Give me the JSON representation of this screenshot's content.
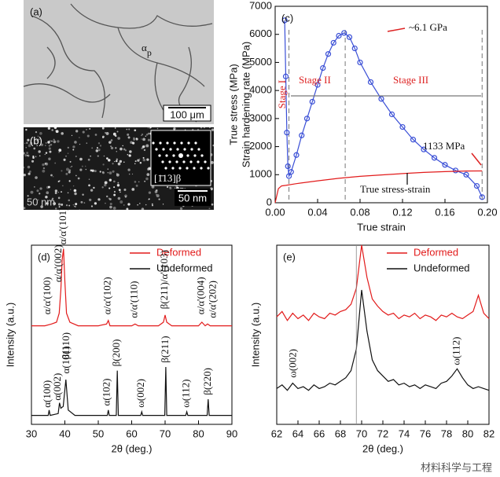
{
  "figure": {
    "panels": {
      "a": {
        "label": "(a)",
        "phase": "α",
        "phase_sub": "p",
        "scale": "100 μm"
      },
      "b": {
        "label": "(b)",
        "zone": "[1̄13]β",
        "scale": "50 nm",
        "inset_scale": "50 nm"
      }
    },
    "watermark": "材料科学与工程"
  },
  "chart_data": [
    {
      "type": "line",
      "label": "(c)",
      "xlabel": "True strain",
      "ylabel_lines": [
        "True stress (MPa)",
        "Strain hardening rate (MPa)"
      ],
      "xlim": [
        0,
        0.2
      ],
      "xticks": [
        {
          "value": 0,
          "label": "0.00"
        },
        0.04,
        0.08,
        0.12,
        0.16,
        {
          "value": 0.2,
          "label": "0.20"
        }
      ],
      "ylim": [
        0,
        7000
      ],
      "yticks": [
        0,
        1000,
        2000,
        3000,
        4000,
        5000,
        6000,
        7000
      ],
      "stage_boundaries": [
        0.013,
        0.066,
        0.195
      ],
      "series": [
        {
          "color": "#3a4fd6",
          "marker": "o",
          "x": [
            0.009,
            0.01,
            0.011,
            0.012,
            0.013,
            0.015,
            0.02,
            0.025,
            0.03,
            0.035,
            0.04,
            0.045,
            0.05,
            0.055,
            0.06,
            0.065,
            0.07,
            0.075,
            0.08,
            0.09,
            0.1,
            0.11,
            0.12,
            0.13,
            0.14,
            0.15,
            0.16,
            0.17,
            0.18,
            0.19,
            0.195
          ],
          "values": [
            6500,
            4500,
            2500,
            1300,
            950,
            1100,
            1700,
            2400,
            3000,
            3600,
            4200,
            4800,
            5300,
            5700,
            5950,
            6050,
            5900,
            5500,
            5000,
            4300,
            3700,
            3150,
            2700,
            2250,
            1900,
            1600,
            1350,
            1150,
            1000,
            600,
            200
          ]
        },
        {
          "color": "#e21b1b",
          "x": [
            0,
            0.003,
            0.006,
            0.01,
            0.02,
            0.04,
            0.06,
            0.08,
            0.1,
            0.12,
            0.14,
            0.16,
            0.18,
            0.195
          ],
          "values": [
            0,
            500,
            600,
            620,
            680,
            780,
            870,
            940,
            990,
            1040,
            1080,
            1110,
            1130,
            1133
          ]
        }
      ],
      "annotations": [
        "~6.1 GPa",
        "Stage I",
        "Stage II",
        "Stage III",
        "1133 MPa",
        "True stress-strain"
      ]
    },
    {
      "type": "line",
      "label": "(d)",
      "xlabel": "2θ (deg.)",
      "ylabel": "Intensity (a.u.)",
      "xlim": [
        30,
        90
      ],
      "xticks": [
        30,
        40,
        50,
        60,
        70,
        80,
        90
      ],
      "ylim": [
        0,
        100
      ],
      "legend": true,
      "series": [
        {
          "name": "Deformed",
          "color": "#e21b1b",
          "x": [
            30,
            34,
            36,
            37.5,
            38.3,
            38.8,
            39.2,
            39.6,
            40,
            40.5,
            41.5,
            44,
            50,
            52.5,
            53,
            53.5,
            56,
            60,
            61,
            62,
            68,
            69.5,
            70,
            70.5,
            72,
            80,
            81,
            82,
            82.7,
            83.5,
            90
          ],
          "values": [
            55,
            55,
            56,
            57,
            62,
            75,
            92,
            98,
            80,
            62,
            57,
            55,
            55,
            56,
            58,
            55,
            55,
            55,
            56,
            55,
            55,
            57,
            61,
            57,
            55,
            55,
            57,
            55,
            56,
            55,
            55
          ]
        },
        {
          "name": "Undeformed",
          "color": "#111111",
          "x": [
            30,
            35,
            35.3,
            35.6,
            38,
            38.4,
            38.8,
            39.5,
            40.3,
            41,
            43,
            52.7,
            53,
            53.3,
            55.4,
            55.7,
            56,
            62.7,
            63,
            63.3,
            69.9,
            70.2,
            70.5,
            76.2,
            76.5,
            76.8,
            82.6,
            82.9,
            83.2,
            90
          ],
          "values": [
            5,
            5,
            8,
            5,
            6,
            12,
            9,
            10,
            25,
            8,
            5,
            5,
            8,
            5,
            5,
            30,
            5,
            5,
            7,
            5,
            5,
            32,
            5,
            5,
            7,
            5,
            5,
            14,
            5,
            5
          ]
        }
      ],
      "annotations": [
        "α/α'(100)",
        "α/α'(002)",
        "α/α'(101)",
        "α/α'(102)",
        "α/α'(110)",
        "β(211)/α'(103)",
        "α/α'(004)",
        "α/α'(202)",
        "β(110)",
        "α(100)",
        "α(002)",
        "α(101)",
        "α(102)",
        "β(200)",
        "ω(002)",
        "β(211)",
        "ω(112)",
        "β(220)"
      ]
    },
    {
      "type": "line",
      "label": "(e)",
      "xlabel": "2θ (deg.)",
      "ylabel": "Intensity (a.u.)",
      "xlim": [
        62,
        82
      ],
      "xticks": [
        62,
        64,
        66,
        68,
        70,
        72,
        74,
        76,
        78,
        80,
        82
      ],
      "ylim": [
        0,
        100
      ],
      "legend": true,
      "series": [
        {
          "name": "Deformed",
          "color": "#e21b1b",
          "x": [
            62,
            62.5,
            63,
            63.5,
            64,
            64.5,
            65,
            65.5,
            66,
            66.5,
            67,
            67.5,
            68,
            68.5,
            69,
            69.5,
            70,
            70.5,
            71,
            71.5,
            72,
            72.5,
            73,
            73.5,
            74,
            74.5,
            75,
            75.5,
            76,
            76.5,
            77,
            77.5,
            78,
            78.5,
            79,
            79.5,
            80,
            80.5,
            81,
            81.5,
            82
          ],
          "values": [
            60,
            63,
            58,
            62,
            59,
            61,
            58,
            62,
            60,
            59,
            62,
            61,
            63,
            64,
            67,
            76,
            100,
            82,
            70,
            66,
            63,
            61,
            62,
            59,
            61,
            60,
            62,
            59,
            61,
            60,
            58,
            61,
            60,
            62,
            60,
            59,
            61,
            63,
            72,
            62,
            59
          ]
        },
        {
          "name": "Undeformed",
          "color": "#111111",
          "x": [
            62,
            62.5,
            63,
            63.5,
            64,
            64.5,
            65,
            65.5,
            66,
            66.5,
            67,
            67.5,
            68,
            68.5,
            69,
            69.5,
            70,
            70.5,
            71,
            71.5,
            72,
            72.5,
            73,
            73.5,
            74,
            74.5,
            75,
            75.5,
            76,
            76.5,
            77,
            77.5,
            78,
            78.5,
            79,
            79.5,
            80,
            80.5,
            81,
            81.5,
            82
          ],
          "values": [
            20,
            22,
            19,
            23,
            20,
            21,
            19,
            22,
            20,
            21,
            23,
            22,
            24,
            26,
            30,
            42,
            75,
            52,
            36,
            30,
            27,
            24,
            25,
            22,
            23,
            21,
            22,
            20,
            22,
            21,
            20,
            23,
            24,
            27,
            31,
            26,
            22,
            20,
            21,
            20,
            19
          ]
        }
      ],
      "annotations": [
        "ω(002)",
        "ω(112)"
      ]
    }
  ]
}
